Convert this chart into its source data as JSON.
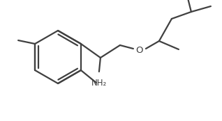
{
  "bg_color": "#ffffff",
  "line_color": "#404040",
  "line_width": 1.6,
  "font_size_label": 8.5,
  "nh2_label": "NH₂",
  "o_label": "O",
  "figsize": [
    3.18,
    1.74
  ],
  "dpi": 100
}
